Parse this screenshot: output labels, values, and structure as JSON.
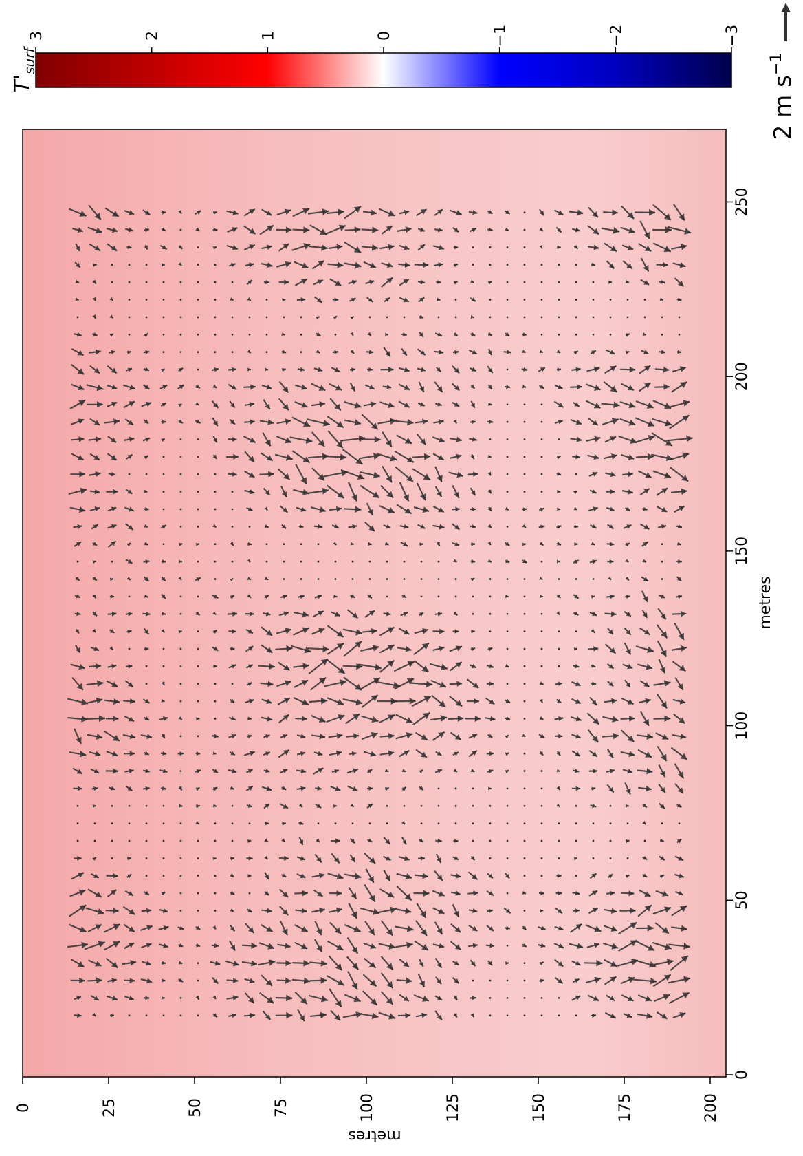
{
  "chart_data": {
    "type": "quiver",
    "x_axis": {
      "label": "metres",
      "range": [
        0,
        200
      ],
      "ticks": [
        0,
        25,
        50,
        75,
        100,
        125,
        150,
        175,
        200
      ]
    },
    "y_axis": {
      "label": "metres",
      "range": [
        0,
        270
      ],
      "ticks": [
        0,
        50,
        100,
        150,
        200,
        250
      ]
    },
    "background_field": {
      "name": "T'_surf",
      "description_color": "light pink / red surface temperature anomaly",
      "typical_value": 0.45
    },
    "vector_grid": {
      "x_start": 16,
      "x_end": 191,
      "x_step": 5,
      "y_start": 17,
      "y_end": 251,
      "y_step": 5,
      "arrow_color": "#333333"
    },
    "colorbar": {
      "title": "T'",
      "title_subscript": "surf",
      "ticks": [
        {
          "value": 3,
          "label": "3"
        },
        {
          "value": 2,
          "label": "2"
        },
        {
          "value": 1,
          "label": "1"
        },
        {
          "value": 0,
          "label": "0"
        },
        {
          "value": -1,
          "label": "−1"
        },
        {
          "value": -2,
          "label": "−2"
        },
        {
          "value": -3,
          "label": "−3"
        }
      ],
      "range": [
        -3,
        3
      ],
      "colormap": "seismic"
    },
    "quiver_key": {
      "value": 2,
      "label_number": "2",
      "label_unit": "m s",
      "label_exponent": "−1"
    }
  }
}
